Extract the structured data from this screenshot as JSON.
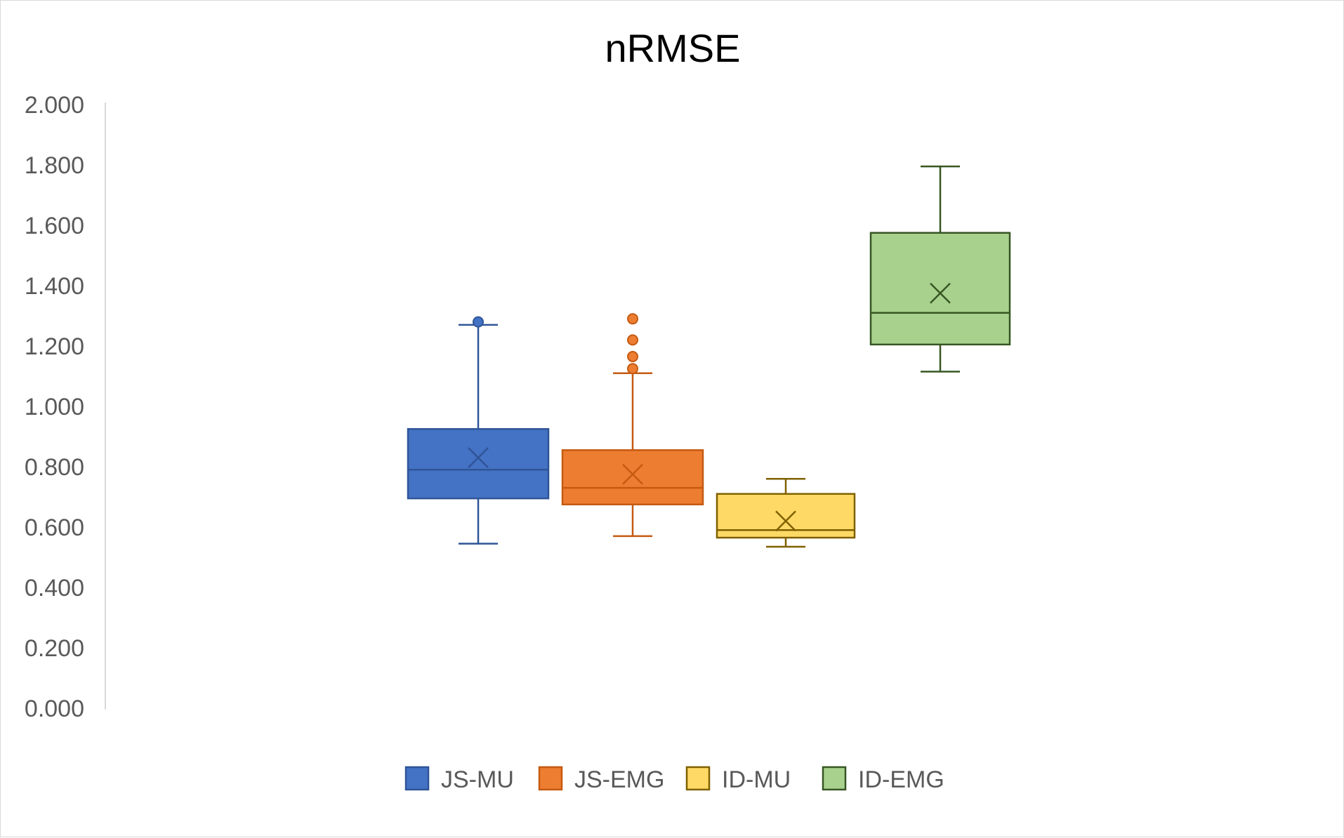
{
  "chart_data": {
    "type": "box",
    "title": "nRMSE",
    "xlabel": "",
    "ylabel": "",
    "ylim": [
      0,
      2
    ],
    "yticks": [
      "0.000",
      "0.200",
      "0.400",
      "0.600",
      "0.800",
      "1.000",
      "1.200",
      "1.400",
      "1.600",
      "1.800",
      "2.000"
    ],
    "grid": false,
    "legend_position": "bottom",
    "series": [
      {
        "name": "JS-MU",
        "fill": "#4472c4",
        "stroke": "#2f5597",
        "whisker_low": 0.545,
        "q1": 0.695,
        "median": 0.79,
        "q3": 0.925,
        "whisker_high": 1.27,
        "mean": 0.83,
        "outliers": [
          1.28
        ]
      },
      {
        "name": "JS-EMG",
        "fill": "#ed7d31",
        "stroke": "#c55a11",
        "whisker_low": 0.57,
        "q1": 0.675,
        "median": 0.73,
        "q3": 0.855,
        "whisker_high": 1.11,
        "mean": 0.775,
        "outliers": [
          1.125,
          1.165,
          1.22,
          1.29
        ]
      },
      {
        "name": "ID-MU",
        "fill": "#ffd966",
        "stroke": "#7f6000",
        "whisker_low": 0.535,
        "q1": 0.565,
        "median": 0.59,
        "q3": 0.71,
        "whisker_high": 0.76,
        "mean": 0.62,
        "outliers": []
      },
      {
        "name": "ID-EMG",
        "fill": "#a9d18e",
        "stroke": "#375623",
        "whisker_low": 1.115,
        "q1": 1.205,
        "median": 1.31,
        "q3": 1.575,
        "whisker_high": 1.795,
        "mean": 1.375,
        "outliers": []
      }
    ]
  }
}
